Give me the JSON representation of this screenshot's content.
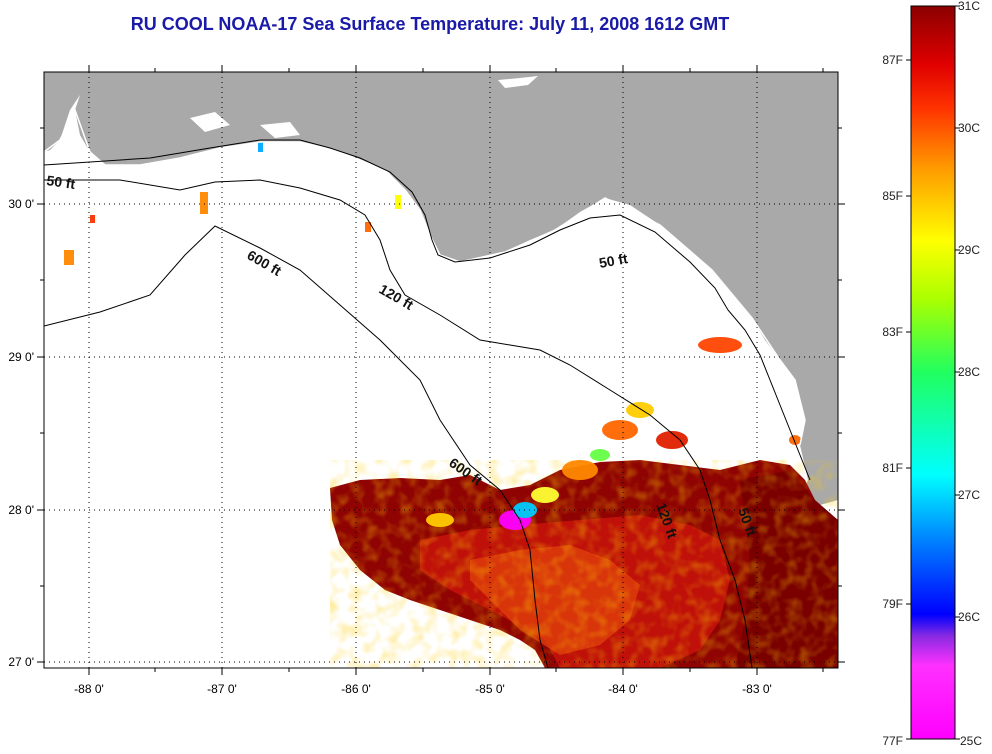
{
  "title": "RU COOL  NOAA-17  Sea Surface Temperature:  July 11, 2008 1612 GMT",
  "map": {
    "lon_ticks": [
      "-88 0'",
      "-87 0'",
      "-86 0'",
      "-85 0'",
      "-84 0'",
      "-83 0'"
    ],
    "lat_ticks": [
      "30 0'",
      "29 0'",
      "28 0'",
      "27 0'"
    ],
    "contour_labels": {
      "fifty_west": "50 ft",
      "fifty_east": "50 ft",
      "fifty_south": "50 ft",
      "onetwenty_north": "120 ft",
      "onetwenty_south": "120 ft",
      "sixhundred_north": "600 ft",
      "sixhundred_south": "600 ft"
    },
    "colors": {
      "land": "#a9a9a9",
      "ocean_nodata": "#ffffff",
      "sst_hot": "#8b0000",
      "sst_warm": "#d42a00"
    }
  },
  "colorbar": {
    "celsius": [
      "31C",
      "30C",
      "29C",
      "28C",
      "27C",
      "26C",
      "25C"
    ],
    "fahrenheit": [
      "87F",
      "85F",
      "83F",
      "81F",
      "79F",
      "77F"
    ],
    "range_c": [
      25,
      31
    ]
  }
}
